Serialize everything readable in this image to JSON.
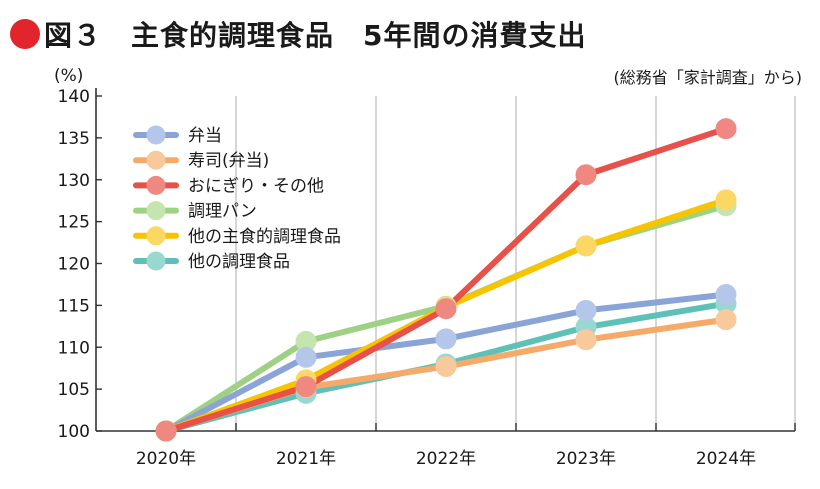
{
  "title": "図３　主食的調理食品　5年間の消費支出",
  "source": "(総務省「家計調査」から)",
  "colors": {
    "title_dot": "#e0262c",
    "grid": "#c9c9c9",
    "axis": "#333333"
  },
  "chart_data": {
    "type": "line",
    "ylabel": "(%)",
    "ylim": [
      100,
      140
    ],
    "yticks": [
      100,
      105,
      110,
      115,
      120,
      125,
      130,
      135,
      140
    ],
    "categories": [
      "2020年",
      "2021年",
      "2022年",
      "2023年",
      "2024年"
    ],
    "grid": "vertical",
    "legend_position": "top-left",
    "series": [
      {
        "name": "弁当",
        "color": "#8aa4d8",
        "marker_color": "#b4c6ea",
        "values": [
          100,
          108.8,
          111,
          114.4,
          116.3
        ]
      },
      {
        "name": "寿司(弁当)",
        "color": "#f5aa6a",
        "marker_color": "#f8c99a",
        "values": [
          100,
          105.2,
          107.7,
          110.9,
          113.3
        ]
      },
      {
        "name": "おにぎり・その他",
        "color": "#e8504a",
        "marker_color": "#ee8880",
        "values": [
          100,
          105.3,
          114.6,
          130.6,
          136.1
        ]
      },
      {
        "name": "調理パン",
        "color": "#9fd184",
        "marker_color": "#c4e4b0",
        "values": [
          100,
          110.7,
          114.9,
          122.1,
          126.9
        ]
      },
      {
        "name": "他の主食的調理食品",
        "color": "#f8c400",
        "marker_color": "#fbd866",
        "values": [
          100,
          106.1,
          114.8,
          122.1,
          127.6
        ]
      },
      {
        "name": "他の調理食品",
        "color": "#5ec1b7",
        "marker_color": "#99d8d0",
        "values": [
          100,
          104.5,
          108,
          112.4,
          115.2
        ]
      }
    ]
  }
}
